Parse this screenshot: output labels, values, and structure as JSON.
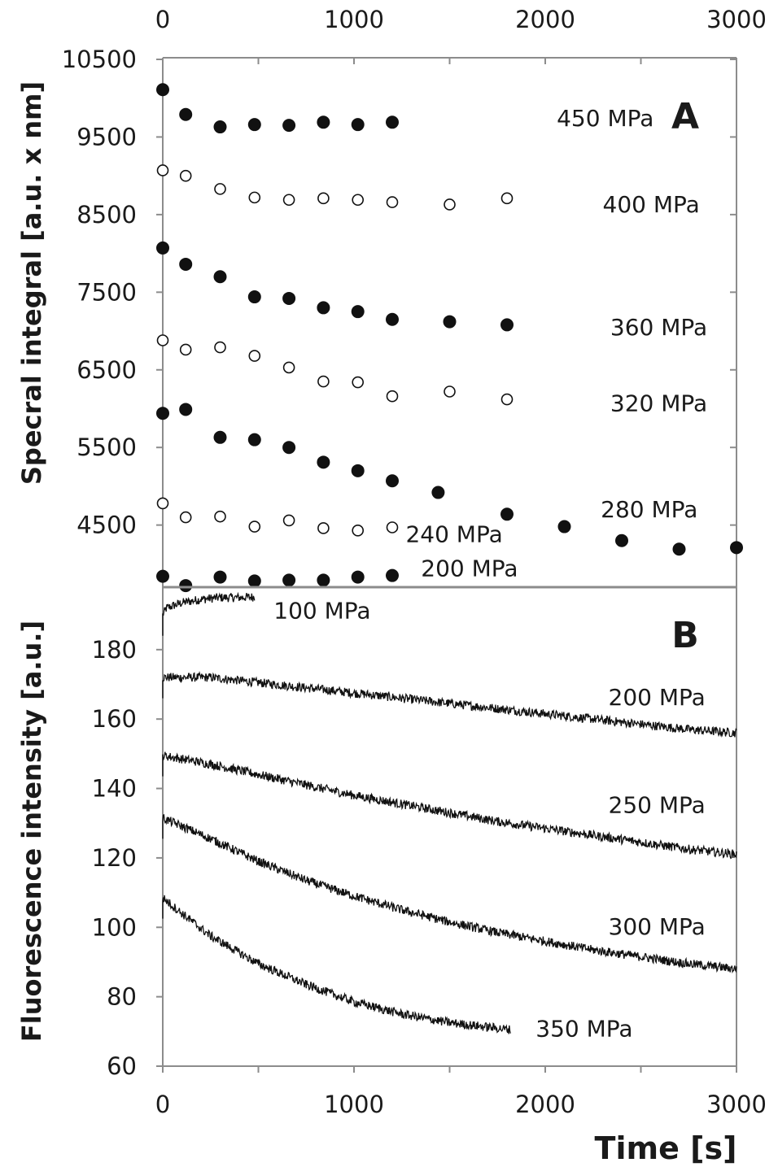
{
  "chart_data": [
    {
      "panel": "A",
      "type": "scatter",
      "ylabel": "Specral integral [a.u. x nm]",
      "xlim": [
        0,
        3000
      ],
      "ylim": [
        3700,
        10500
      ],
      "x_ticks": [
        0,
        1000,
        2000,
        3000
      ],
      "y_ticks": [
        4500,
        5500,
        6500,
        7500,
        8500,
        9500,
        10500
      ],
      "x_axis_position": "top",
      "series": [
        {
          "name": "450 MPa",
          "marker": "filled",
          "label_at": [
            2060,
            9640
          ],
          "x": [
            0,
            120,
            300,
            480,
            660,
            840,
            1020,
            1200
          ],
          "y": [
            10110,
            9790,
            9630,
            9660,
            9650,
            9690,
            9660,
            9690
          ]
        },
        {
          "name": "400 MPa",
          "marker": "open",
          "label_at": [
            2300,
            8530
          ],
          "x": [
            0,
            120,
            300,
            480,
            660,
            840,
            1020,
            1200,
            1500,
            1800
          ],
          "y": [
            9070,
            9000,
            8830,
            8720,
            8690,
            8710,
            8690,
            8660,
            8630,
            8710
          ]
        },
        {
          "name": "360 MPa",
          "marker": "filled",
          "label_at": [
            2340,
            6950
          ],
          "x": [
            0,
            120,
            300,
            480,
            660,
            840,
            1020,
            1200,
            1500,
            1800
          ],
          "y": [
            8070,
            7860,
            7700,
            7440,
            7420,
            7300,
            7250,
            7150,
            7120,
            7080
          ]
        },
        {
          "name": "320 MPa",
          "marker": "open",
          "label_at": [
            2340,
            5970
          ],
          "x": [
            0,
            120,
            300,
            480,
            660,
            840,
            1020,
            1200,
            1500,
            1800
          ],
          "y": [
            6880,
            6760,
            6790,
            6680,
            6530,
            6350,
            6340,
            6160,
            6220,
            6120
          ]
        },
        {
          "name": "280 MPa",
          "marker": "filled",
          "label_at": [
            2290,
            4600
          ],
          "x": [
            0,
            120,
            300,
            480,
            660,
            840,
            1020,
            1200,
            1440,
            1800,
            2100,
            2400,
            2700,
            3000
          ],
          "y": [
            5940,
            5990,
            5630,
            5600,
            5500,
            5310,
            5200,
            5070,
            4920,
            4640,
            4480,
            4300,
            4190,
            4210
          ]
        },
        {
          "name": "240 MPa",
          "marker": "open",
          "label_at": [
            1270,
            4280
          ],
          "x": [
            0,
            120,
            300,
            480,
            660,
            840,
            1020,
            1200
          ],
          "y": [
            4780,
            4600,
            4610,
            4480,
            4560,
            4460,
            4430,
            4470
          ]
        },
        {
          "name": "200 MPa",
          "marker": "filled",
          "label_at": [
            1350,
            3840
          ],
          "x": [
            0,
            120,
            300,
            480,
            660,
            840,
            1020,
            1200
          ],
          "y": [
            3840,
            3720,
            3830,
            3780,
            3790,
            3790,
            3830,
            3850
          ]
        }
      ]
    },
    {
      "panel": "B",
      "type": "line",
      "ylabel": "Fluorescence intensity [a.u.]",
      "xlabel": "Time [s]",
      "xlim": [
        0,
        3000
      ],
      "ylim": [
        60,
        198
      ],
      "x_ticks": [
        0,
        1000,
        2000,
        3000
      ],
      "y_ticks": [
        60,
        80,
        100,
        120,
        140,
        160,
        180
      ],
      "series": [
        {
          "name": "100 MPa",
          "label_at": [
            580,
            189
          ],
          "x": [
            0,
            20,
            100,
            200,
            300,
            400,
            480
          ],
          "y": [
            190,
            192,
            193.5,
            194.5,
            195,
            195,
            195.2
          ]
        },
        {
          "name": "200 MPa",
          "label_at": [
            2330,
            164
          ],
          "x": [
            0,
            250,
            500,
            750,
            1000,
            1250,
            1500,
            1750,
            2000,
            2250,
            2500,
            2750,
            3000
          ],
          "y": [
            172,
            172,
            170.5,
            169,
            167.5,
            166,
            164.5,
            163,
            161.5,
            160,
            158.5,
            157,
            156
          ]
        },
        {
          "name": "250 MPa",
          "label_at": [
            2330,
            133
          ],
          "x": [
            0,
            250,
            500,
            750,
            1000,
            1250,
            1500,
            1750,
            2000,
            2250,
            2500,
            2750,
            3000
          ],
          "y": [
            149.5,
            147,
            144,
            141,
            138,
            135.5,
            133,
            130.5,
            128.5,
            126.5,
            124.5,
            122.5,
            121
          ]
        },
        {
          "name": "300 MPa",
          "label_at": [
            2330,
            98
          ],
          "x": [
            0,
            250,
            500,
            750,
            1000,
            1250,
            1500,
            1750,
            2000,
            2250,
            2500,
            2750,
            3000
          ],
          "y": [
            131.5,
            125.5,
            119,
            113.5,
            109,
            105,
            101.5,
            98.5,
            96,
            93.5,
            91.5,
            89.5,
            88
          ]
        },
        {
          "name": "350 MPa",
          "label_at": [
            1950,
            68.5
          ],
          "x": [
            0,
            100,
            250,
            500,
            750,
            1000,
            1250,
            1500,
            1820
          ],
          "y": [
            108.5,
            104,
            97.5,
            89.5,
            83.5,
            78.5,
            75,
            72.5,
            70.5
          ]
        }
      ]
    }
  ]
}
